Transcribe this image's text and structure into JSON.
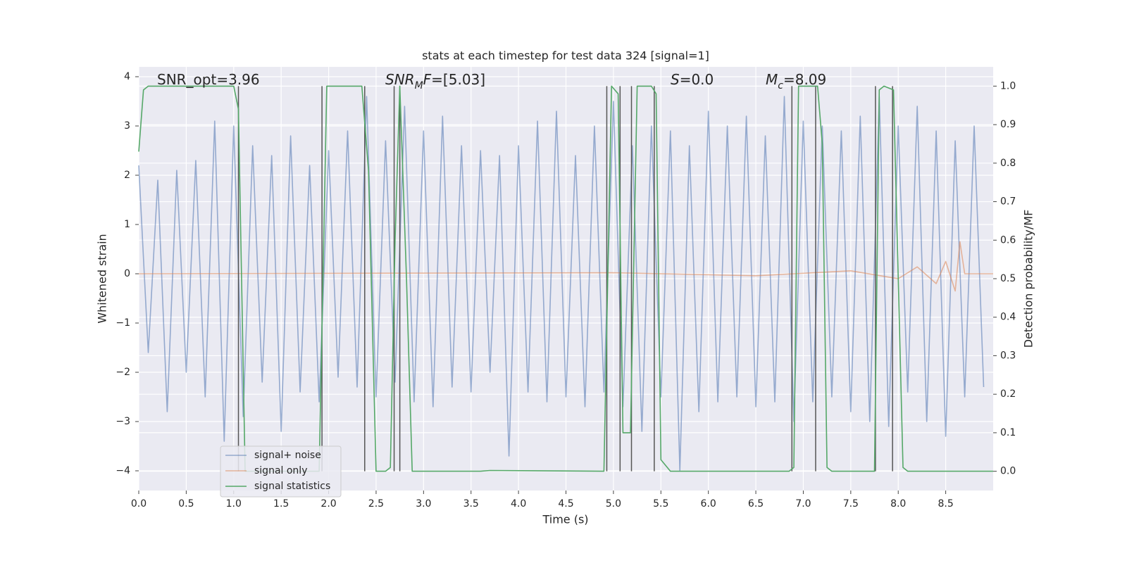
{
  "chart_data": {
    "type": "line",
    "title": "stats at each timestep for test data 324 [signal=1]",
    "xlabel": "Time (s)",
    "ylabel": "Whitened strain",
    "y2label": "Detection probability/MF",
    "xlim": [
      0,
      9.0
    ],
    "ylim": [
      -4.4,
      4.2
    ],
    "y2lim": [
      -0.05,
      1.05
    ],
    "xticks": [
      {
        "value": 0,
        "label": "0.0"
      },
      0.5,
      {
        "value": 1,
        "label": "1.0"
      },
      1.5,
      {
        "value": 2,
        "label": "2.0"
      },
      2.5,
      {
        "value": 3,
        "label": "3.0"
      },
      3.5,
      {
        "value": 4,
        "label": "4.0"
      },
      4.5,
      {
        "value": 5,
        "label": "5.0"
      },
      5.5,
      {
        "value": 6,
        "label": "6.0"
      },
      6.5,
      {
        "value": 7,
        "label": "7.0"
      },
      7.5,
      {
        "value": 8,
        "label": "8.0"
      },
      8.5
    ],
    "yticks": [
      {
        "value": -4,
        "label": "−4"
      },
      {
        "value": -3,
        "label": "−3"
      },
      {
        "value": -2,
        "label": "−2"
      },
      {
        "value": -1,
        "label": "−1"
      },
      0,
      1,
      2,
      3,
      4
    ],
    "y2ticks": [
      {
        "value": 0,
        "label": "0.0"
      },
      0.1,
      0.2,
      0.3,
      0.4,
      0.5,
      0.6,
      0.7,
      0.8,
      0.9,
      {
        "value": 1,
        "label": "1.0"
      }
    ],
    "grid": true,
    "series": [
      {
        "name": "signal+ noise",
        "color": "#4c72b0",
        "x": [
          0.0,
          0.1,
          0.2,
          0.3,
          0.4,
          0.5,
          0.6,
          0.7,
          0.8,
          0.9,
          1.0,
          1.1,
          1.2,
          1.3,
          1.4,
          1.5,
          1.6,
          1.7,
          1.8,
          1.9,
          2.0,
          2.1,
          2.2,
          2.3,
          2.4,
          2.5,
          2.6,
          2.7,
          2.8,
          2.9,
          3.0,
          3.1,
          3.2,
          3.3,
          3.4,
          3.5,
          3.6,
          3.7,
          3.8,
          3.9,
          4.0,
          4.1,
          4.2,
          4.3,
          4.4,
          4.5,
          4.6,
          4.7,
          4.8,
          4.9,
          5.0,
          5.1,
          5.2,
          5.3,
          5.4,
          5.5,
          5.6,
          5.7,
          5.8,
          5.9,
          6.0,
          6.1,
          6.2,
          6.3,
          6.4,
          6.5,
          6.6,
          6.7,
          6.8,
          6.9,
          7.0,
          7.1,
          7.2,
          7.3,
          7.4,
          7.5,
          7.6,
          7.7,
          7.8,
          7.9,
          8.0,
          8.1,
          8.2,
          8.3,
          8.4,
          8.5,
          8.6,
          8.7,
          8.8,
          8.9
        ],
        "values": [
          2.2,
          -1.6,
          1.9,
          -2.8,
          2.1,
          -2.0,
          2.3,
          -2.5,
          3.1,
          -3.4,
          3.0,
          -2.9,
          2.6,
          -2.2,
          2.4,
          -3.2,
          2.8,
          -2.4,
          2.2,
          -2.6,
          2.5,
          -2.1,
          2.9,
          -2.3,
          3.6,
          -2.5,
          2.7,
          -2.2,
          3.4,
          -2.6,
          2.9,
          -2.7,
          3.2,
          -2.3,
          2.6,
          -2.4,
          2.5,
          -2.0,
          2.4,
          -3.7,
          2.6,
          -2.4,
          3.1,
          -2.6,
          3.3,
          -2.5,
          2.4,
          -2.7,
          3.0,
          -2.4,
          3.5,
          -2.7,
          2.6,
          -3.2,
          3.0,
          -2.5,
          2.9,
          -4.0,
          2.6,
          -2.8,
          3.3,
          -2.6,
          3.0,
          -2.5,
          3.2,
          -2.7,
          2.8,
          -2.6,
          3.6,
          -3.0,
          3.1,
          -2.6,
          3.0,
          -2.5,
          2.9,
          -2.8,
          3.2,
          -3.0,
          3.6,
          -3.1,
          3.0,
          -2.4,
          3.4,
          -3.0,
          2.9,
          -3.3,
          2.7,
          -2.5,
          3.0,
          -2.3
        ]
      },
      {
        "name": "signal only",
        "color": "#dd8452",
        "x": [
          0,
          5.0,
          6.5,
          7.5,
          8.0,
          8.2,
          8.4,
          8.5,
          8.6,
          8.65,
          8.7,
          9.0
        ],
        "values": [
          0,
          0.02,
          -0.04,
          0.06,
          -0.1,
          0.14,
          -0.2,
          0.25,
          -0.35,
          0.65,
          0,
          0
        ]
      },
      {
        "name": "signal statistics",
        "color": "#55a868",
        "axis": "y2",
        "x": [
          0.0,
          0.05,
          0.1,
          1.0,
          1.05,
          1.12,
          1.9,
          1.98,
          2.35,
          2.42,
          2.5,
          2.6,
          2.65,
          2.7,
          2.75,
          2.82,
          2.88,
          3.6,
          3.7,
          4.9,
          4.98,
          5.05,
          5.1,
          5.18,
          5.25,
          5.4,
          5.45,
          5.5,
          5.6,
          6.85,
          6.9,
          6.95,
          7.15,
          7.2,
          7.25,
          7.3,
          7.75,
          7.8,
          7.85,
          7.95,
          8.05,
          8.1,
          9.0
        ],
        "values": [
          0.83,
          0.99,
          1.0,
          1.0,
          0.94,
          0,
          0,
          1.0,
          1.0,
          0.78,
          0,
          0,
          0.01,
          0.6,
          1.0,
          0.5,
          0,
          0,
          0.002,
          0,
          1.0,
          0.98,
          0.1,
          0.1,
          1.0,
          1.0,
          0.98,
          0.03,
          0,
          0,
          0.01,
          1.0,
          1.0,
          0.85,
          0.01,
          0,
          0,
          0.99,
          1.0,
          0.99,
          0.01,
          0,
          0
        ]
      }
    ],
    "vlines": {
      "color": "#555555",
      "x": [
        1.05,
        1.93,
        2.38,
        2.69,
        2.75,
        4.93,
        5.07,
        5.19,
        5.43,
        6.88,
        7.13,
        7.76,
        7.94
      ],
      "y2": [
        0,
        1
      ]
    },
    "annotations": [
      [
        {
          "text": "SNR_opt=3.96"
        }
      ],
      [
        {
          "text": "SNR",
          "italic": true
        },
        {
          "text": "M",
          "italic": true,
          "sub": true
        },
        {
          "text": "F",
          "italic": true
        },
        {
          "text": "=[5.03]"
        }
      ],
      [
        {
          "text": "S",
          "italic": true
        },
        {
          "text": "=0.0"
        }
      ],
      [
        {
          "text": "M",
          "italic": true
        },
        {
          "text": "c",
          "italic": true,
          "sub": true
        },
        {
          "text": "=8.09"
        }
      ]
    ]
  }
}
